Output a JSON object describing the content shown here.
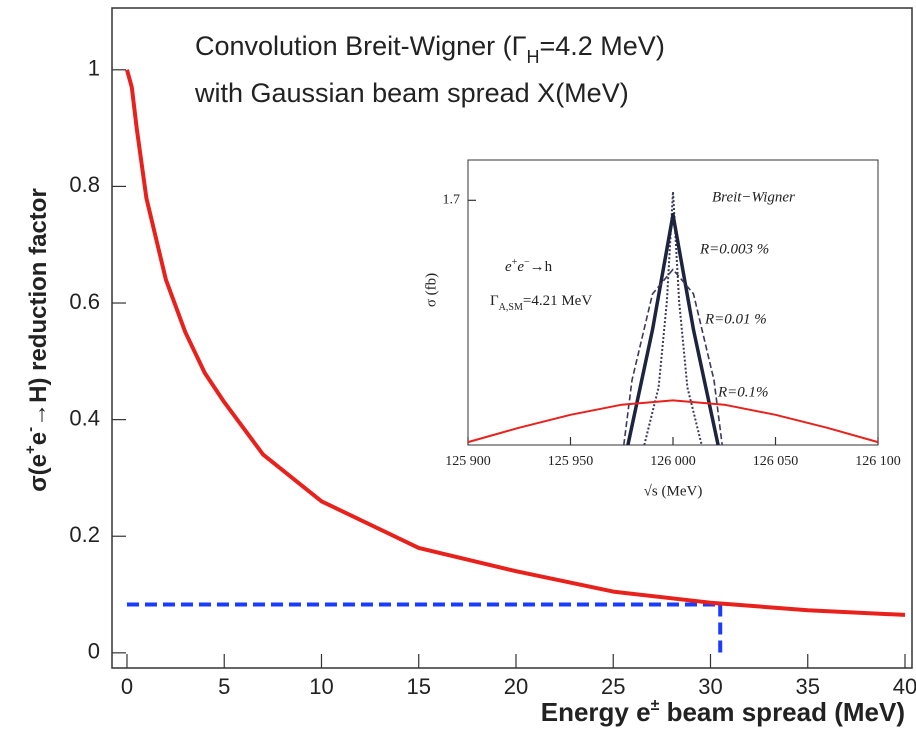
{
  "chart_data": [
    {
      "type": "line",
      "title_lines": [
        [
          "Convolution Breit-Wigner (Γ",
          "H",
          "=4.2 MeV)"
        ],
        [
          "with Gaussian beam spread X(MeV)"
        ]
      ],
      "y_label": [
        "σ(e",
        "+",
        "e",
        "-",
        "→H) reduction factor"
      ],
      "x_label": [
        "Energy e",
        "±",
        " beam spread (MeV)"
      ],
      "xlim": [
        -0.77,
        40.36
      ],
      "ylim": [
        -0.026,
        1.106
      ],
      "xticks": [
        0,
        5,
        10,
        15,
        20,
        25,
        30,
        35,
        40
      ],
      "yticks": [
        0,
        0.2,
        0.4,
        0.6,
        0.8,
        1
      ],
      "x": [
        0,
        0.25,
        0.5,
        1,
        2,
        3,
        4,
        5,
        7,
        10,
        15,
        20,
        25,
        30,
        35,
        40
      ],
      "series": [
        {
          "name": null,
          "color": "#e8211c",
          "line_style": "solid",
          "line_width": 4,
          "values": [
            1,
            0.97,
            0.9,
            0.78,
            0.64,
            0.55,
            0.48,
            0.43,
            0.34,
            0.26,
            0.18,
            0.14,
            0.105,
            0.086,
            0.073,
            0.065
          ]
        }
      ],
      "reference": {
        "x": 30.5,
        "y": 0.083,
        "color": "#1a3cff"
      }
    },
    {
      "type": "line",
      "y_label": "σ (fb)",
      "x_label": "√s (MeV)",
      "xlim": [
        125900,
        126100
      ],
      "ylim": [
        0,
        1.98
      ],
      "xticks": [
        {
          "value": 125900,
          "label": "125 900"
        },
        {
          "value": 125950,
          "label": "125 950"
        },
        {
          "value": 126000,
          "label": "126 000"
        },
        {
          "value": 126050,
          "label": "126 050"
        },
        {
          "value": 126100,
          "label": "126 100"
        }
      ],
      "yticks": [
        1.7
      ],
      "process_label": [
        "e",
        "+",
        "e",
        "−",
        "→h"
      ],
      "width_label": [
        "Γ",
        "A,SM",
        "=4.21 MeV"
      ],
      "series": [
        {
          "name": "Breit−Wigner",
          "color": "#3a3a5a",
          "line_style": "dotted",
          "line_width": 2,
          "x": [
            125986,
            125993,
            125997,
            126000,
            126003,
            126007,
            126014
          ],
          "values": [
            0,
            0.4,
            1.0,
            1.76,
            1.0,
            0.4,
            0
          ]
        },
        {
          "name": "R=0.003 %",
          "color": "#1e2440",
          "line_style": "solid",
          "line_width": 3.5,
          "x": [
            125978,
            125990,
            126000,
            126010,
            126022
          ],
          "values": [
            0,
            0.8,
            1.6,
            0.8,
            0
          ]
        },
        {
          "name": "R=0.01 %",
          "color": "#3a3a5a",
          "line_style": "dashed",
          "line_width": 1.6,
          "x": [
            125976,
            125980,
            125990,
            126000,
            126010,
            126020,
            126024
          ],
          "values": [
            0,
            0.45,
            1.05,
            1.22,
            1.05,
            0.45,
            0
          ]
        },
        {
          "name": "R=0.1%",
          "color": "#e8211c",
          "line_style": "solid",
          "line_width": 2,
          "x": [
            125900,
            125925,
            125950,
            125975,
            126000,
            126025,
            126050,
            126075,
            126100
          ],
          "values": [
            0.02,
            0.12,
            0.21,
            0.28,
            0.31,
            0.28,
            0.21,
            0.12,
            0.02
          ]
        }
      ]
    }
  ]
}
